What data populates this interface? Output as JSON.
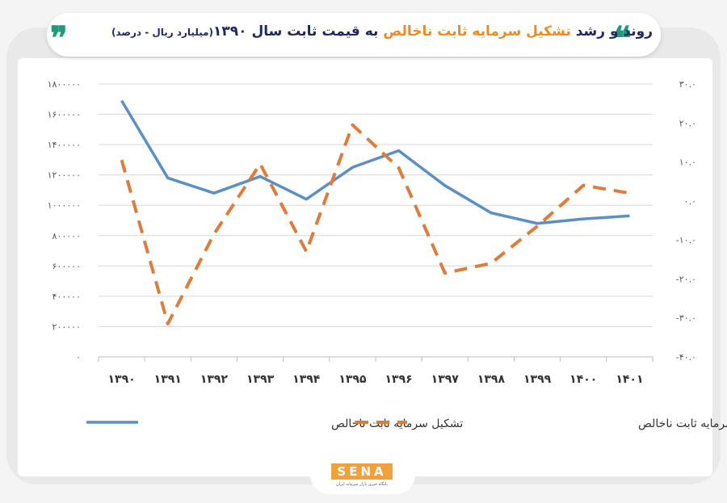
{
  "title": {
    "part1": "روند و رشد",
    "highlight": "تشکیل سرمایه ثابت ناخالص",
    "part2": "به قیمت ثابت سال ۱۳۹۰",
    "unit": "(میلیارد ریال - درصد)"
  },
  "colors": {
    "accent": "#1f9a7a",
    "highlight": "#f08a1c",
    "series1": "#5b8fc7",
    "series2": "#e07b39"
  },
  "chart_data": {
    "type": "line",
    "x": [
      "۱۳۹۰",
      "۱۳۹۱",
      "۱۳۹۲",
      "۱۳۹۳",
      "۱۳۹۴",
      "۱۳۹۵",
      "۱۳۹۶",
      "۱۳۹۷",
      "۱۳۹۸",
      "۱۳۹۹",
      "۱۴۰۰",
      "۱۴۰۱"
    ],
    "left_axis": {
      "ylim": [
        0,
        1800000
      ],
      "ticks": [
        0,
        200000,
        400000,
        600000,
        800000,
        1000000,
        1200000,
        1400000,
        1600000,
        1800000
      ],
      "tick_labels": [
        "۰",
        "۲۰۰۰۰۰",
        "۴۰۰۰۰۰",
        "۶۰۰۰۰۰",
        "۸۰۰۰۰۰",
        "۱۰۰۰۰۰۰",
        "۱۲۰۰۰۰۰",
        "۱۴۰۰۰۰۰",
        "۱۶۰۰۰۰۰",
        "۱۸۰۰۰۰۰"
      ]
    },
    "right_axis": {
      "ylim": [
        -40,
        30
      ],
      "ticks": [
        -40,
        -30,
        -20,
        -10,
        0,
        10,
        20,
        30
      ],
      "tick_labels": [
        "-۴۰.۰",
        "-۳۰.۰",
        "-۲۰.۰",
        "-۱۰.۰",
        "۰.۰",
        "۱۰.۰",
        "۲۰.۰",
        "۳۰.۰"
      ]
    },
    "series": [
      {
        "name": "تشکیل سرمایه ثابت ناخالص",
        "axis": "left",
        "style": "solid",
        "values": [
          1690000,
          1180000,
          1080000,
          1190000,
          1040000,
          1250000,
          1360000,
          1130000,
          950000,
          880000,
          910000,
          930000
        ]
      },
      {
        "name": "رشد تشکیل سرمایه ثابت ناخالص",
        "axis": "right",
        "style": "dashed",
        "values": [
          10.5,
          -31.5,
          -8.5,
          9.5,
          -13.0,
          19.5,
          8.5,
          -18.5,
          -16.0,
          -6.5,
          4.0,
          2.0
        ]
      }
    ],
    "grid": "horizontal",
    "legend": "bottom"
  },
  "logo": {
    "text": "SENA",
    "subtitle": "پایگاه خبری بازار سرمایه ایران"
  }
}
